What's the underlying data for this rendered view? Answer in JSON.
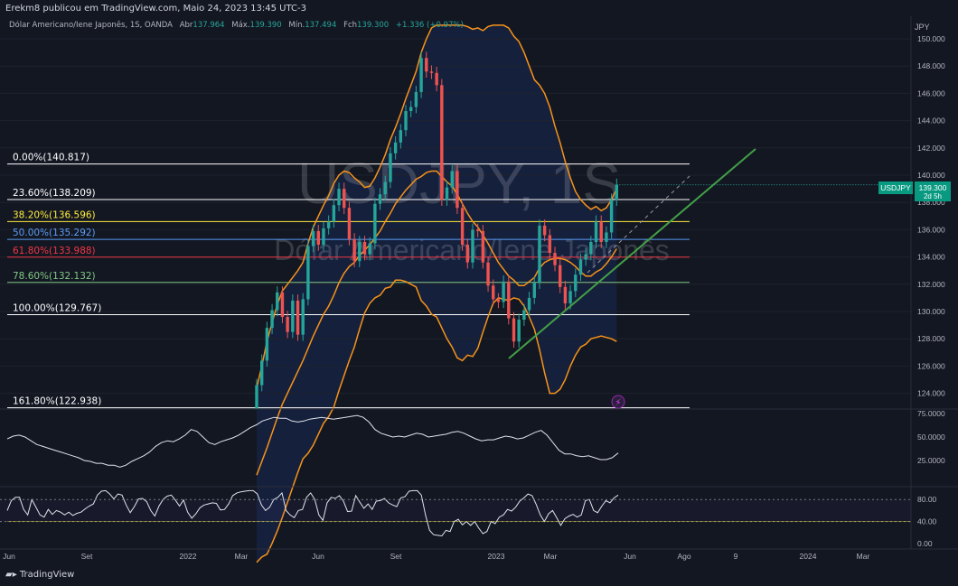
{
  "header": {
    "published": "Erekm8 publicou em TradingView.com, Maio 24, 2023 13:45 UTC-3",
    "symbol_desc": "Dólar Americano/Iene Japonês, 1S, OANDA",
    "open_label": "Abr",
    "open": "137.964",
    "high_label": "Máx.",
    "high": "139.390",
    "low_label": "Mín.",
    "low": "137.494",
    "close_label": "Fch",
    "close": "139.300",
    "change": "+1.336 (+0.97%)"
  },
  "watermark": {
    "line1": "USDJPY, 1S",
    "line2": "Dólar Americano/Iene Japonês"
  },
  "brand": "TradingView",
  "colors": {
    "bg": "#131722",
    "up": "#26a69a",
    "down": "#ef5350",
    "bollinger": "#f7931a",
    "trendline": "#43a047"
  },
  "chart_data": [
    {
      "type": "candlestick",
      "title": "USDJPY, 1S",
      "y_unit": "JPY",
      "ylim": [
        123.0,
        151.0
      ],
      "y_ticks": [
        "150.000",
        "148.000",
        "146.000",
        "144.000",
        "142.000",
        "140.000",
        "138.000",
        "136.000",
        "134.000",
        "132.000",
        "130.000",
        "128.000",
        "126.000",
        "124.000"
      ],
      "x_ticks": [
        "Jun",
        "Set",
        "2022",
        "Mar",
        "Jun",
        "Set",
        "2023",
        "Mar",
        "Jun",
        "Ago",
        "9",
        "2024",
        "Mar"
      ],
      "price_label": {
        "symbol": "USDJPY",
        "value": "139.300",
        "countdown": "2d 5h"
      },
      "fib_levels": [
        {
          "label": "0.00%",
          "value": "140.817",
          "color": "#ffffff"
        },
        {
          "label": "23.60%",
          "value": "138.209",
          "color": "#ffffff"
        },
        {
          "label": "38.20%",
          "value": "136.596",
          "color": "#ffeb3b"
        },
        {
          "label": "50.00%",
          "value": "135.292",
          "color": "#5b9cf6"
        },
        {
          "label": "61.80%",
          "value": "133.988",
          "color": "#f23645"
        },
        {
          "label": "78.60%",
          "value": "132.132",
          "color": "#81c784"
        },
        {
          "label": "100.00%",
          "value": "129.767",
          "color": "#ffffff"
        },
        {
          "label": "161.80%",
          "value": "122.938",
          "color": "#ffffff"
        }
      ],
      "candles": [
        [
          121.5,
          124.6
        ],
        [
          124.6,
          126.4
        ],
        [
          126.4,
          128.8
        ],
        [
          128.8,
          130.1
        ],
        [
          130.1,
          131.4
        ],
        [
          131.4,
          129.6
        ],
        [
          129.6,
          128.5
        ],
        [
          128.5,
          130.8
        ],
        [
          130.8,
          128.3
        ],
        [
          128.3,
          130.9
        ],
        [
          130.9,
          134.8
        ],
        [
          134.8,
          135.9
        ],
        [
          135.9,
          134.9
        ],
        [
          134.9,
          136.1
        ],
        [
          136.1,
          136.6
        ],
        [
          136.6,
          137.8
        ],
        [
          137.8,
          139.0
        ],
        [
          139.0,
          137.6
        ],
        [
          137.6,
          135.3
        ],
        [
          135.3,
          133.7
        ],
        [
          133.7,
          135.1
        ],
        [
          135.1,
          134.2
        ],
        [
          134.2,
          135.0
        ],
        [
          135.0,
          137.9
        ],
        [
          137.9,
          138.6
        ],
        [
          138.6,
          139.5
        ],
        [
          139.5,
          141.6
        ],
        [
          141.6,
          142.4
        ],
        [
          142.4,
          143.3
        ],
        [
          143.3,
          144.7
        ],
        [
          144.7,
          145.0
        ],
        [
          145.0,
          146.1
        ],
        [
          146.1,
          148.6
        ],
        [
          148.6,
          147.6
        ],
        [
          147.6,
          147.5
        ],
        [
          147.5,
          146.6
        ],
        [
          146.6,
          138.2
        ],
        [
          138.2,
          139.1
        ],
        [
          139.1,
          140.3
        ],
        [
          140.3,
          137.6
        ],
        [
          137.6,
          134.9
        ],
        [
          134.9,
          133.6
        ],
        [
          133.6,
          136.0
        ],
        [
          136.0,
          135.9
        ],
        [
          135.9,
          133.6
        ],
        [
          133.6,
          131.9
        ],
        [
          131.9,
          130.9
        ],
        [
          130.9,
          130.7
        ],
        [
          130.7,
          132.2
        ],
        [
          132.2,
          129.5
        ],
        [
          129.5,
          127.8
        ],
        [
          127.8,
          129.4
        ],
        [
          129.4,
          130.1
        ],
        [
          130.1,
          131.0
        ],
        [
          131.0,
          132.1
        ],
        [
          132.1,
          136.3
        ],
        [
          136.3,
          135.6
        ],
        [
          135.6,
          134.3
        ],
        [
          134.3,
          133.4
        ],
        [
          133.4,
          131.8
        ],
        [
          131.8,
          130.6
        ],
        [
          130.6,
          131.5
        ],
        [
          131.5,
          132.7
        ],
        [
          132.7,
          133.8
        ],
        [
          133.8,
          134.2
        ],
        [
          134.2,
          135.1
        ],
        [
          135.1,
          136.6
        ],
        [
          136.6,
          135.1
        ],
        [
          135.1,
          135.8
        ],
        [
          135.8,
          138.2
        ],
        [
          138.2,
          139.3
        ]
      ],
      "bollinger": {
        "upper": [
          124.4,
          126.0,
          127.8,
          129.2,
          130.5,
          131.5,
          132.0,
          132.5,
          133.0,
          133.6,
          135.0,
          136.2,
          137.0,
          137.8,
          138.5,
          139.4,
          140.0,
          140.3,
          140.2,
          139.8,
          139.5,
          139.1,
          139.2,
          139.8,
          140.6,
          141.5,
          142.6,
          143.5,
          144.5,
          145.6,
          146.6,
          147.6,
          149.0,
          150.0,
          150.8,
          151.0,
          151.0,
          151.0,
          151.0,
          151.0,
          151.0,
          150.9,
          150.7,
          150.8,
          150.6,
          150.9,
          151.0,
          151.0,
          151.0,
          150.8,
          150.2,
          149.8,
          149.0,
          148.0,
          147.0,
          146.6,
          146.0,
          145.0,
          143.6,
          142.4,
          141.0,
          139.8,
          138.8,
          138.2,
          137.8,
          137.5,
          137.7,
          137.4,
          137.6,
          138.2,
          139.0
        ],
        "mid": [
          118.0,
          119.0,
          120.0,
          121.1,
          122.2,
          123.2,
          124.0,
          124.8,
          125.6,
          126.4,
          127.3,
          128.2,
          129.0,
          129.8,
          130.4,
          131.2,
          132.1,
          132.8,
          133.3,
          133.6,
          134.1,
          134.5,
          134.9,
          135.4,
          135.9,
          136.6,
          137.2,
          137.9,
          138.4,
          138.9,
          139.3,
          139.7,
          139.9,
          140.2,
          140.3,
          140.3,
          139.9,
          139.5,
          139.2,
          138.6,
          137.9,
          137.2,
          136.6,
          136.2,
          135.6,
          135.0,
          134.3,
          133.6,
          133.1,
          132.6,
          132.3,
          131.9,
          131.9,
          132.2,
          132.5,
          133.2,
          133.6,
          133.8,
          133.9,
          133.9,
          133.8,
          133.6,
          133.3,
          132.9,
          132.6,
          132.6,
          132.9,
          133.1,
          133.5,
          134.0,
          134.6
        ],
        "lower": [
          111.6,
          112.0,
          112.2,
          113.0,
          113.9,
          114.9,
          116.0,
          117.1,
          118.2,
          119.2,
          119.6,
          120.2,
          121.0,
          121.8,
          122.3,
          123.0,
          124.2,
          125.3,
          126.4,
          127.4,
          128.7,
          129.9,
          130.6,
          131.0,
          131.2,
          131.7,
          131.8,
          132.3,
          132.3,
          132.2,
          132.0,
          131.8,
          130.8,
          130.4,
          129.8,
          129.6,
          128.8,
          128.0,
          127.4,
          126.6,
          126.4,
          126.8,
          126.7,
          127.3,
          128.5,
          129.6,
          130.6,
          131.0,
          130.9,
          130.8,
          131.0,
          130.9,
          130.4,
          129.6,
          128.7,
          127.2,
          125.5,
          124.0,
          124.0,
          124.3,
          125.0,
          126.0,
          126.8,
          127.4,
          127.6,
          128.0,
          128.1,
          128.2,
          128.1,
          128.0,
          127.8
        ]
      }
    },
    {
      "type": "line",
      "title": "",
      "ylim": [
        0,
        75
      ],
      "y_ticks": [
        "75.0000",
        "50.0000",
        "25.0000"
      ],
      "values": [
        48,
        51,
        52,
        50,
        46,
        42,
        40,
        38,
        36,
        34,
        32,
        30,
        28,
        25,
        24,
        22,
        22,
        20,
        20,
        18,
        20,
        24,
        27,
        30,
        34,
        40,
        44,
        46,
        45,
        48,
        52,
        58,
        56,
        50,
        44,
        42,
        45,
        47,
        49,
        52,
        56,
        60,
        63,
        67,
        69,
        71,
        70,
        70,
        67,
        66,
        67,
        69,
        70,
        71,
        70,
        69,
        70,
        71,
        72,
        73,
        71,
        66,
        58,
        54,
        52,
        50,
        51,
        50,
        52,
        54,
        53,
        50,
        51,
        52,
        53,
        55,
        56,
        54,
        51,
        48,
        46,
        47,
        47,
        49,
        51,
        50,
        48,
        49,
        52,
        55,
        57,
        52,
        44,
        36,
        32,
        32,
        30,
        29,
        30,
        28,
        26,
        26,
        28,
        33
      ]
    },
    {
      "type": "line",
      "title": "",
      "ylim": [
        0,
        100
      ],
      "y_ticks": [
        "80.00",
        "40.00",
        "0.00"
      ],
      "values": [
        60,
        78,
        84,
        84,
        62,
        52,
        80,
        66,
        52,
        48,
        62,
        53,
        60,
        57,
        52,
        57,
        51,
        55,
        57,
        63,
        68,
        72,
        88,
        95,
        96,
        90,
        81,
        90,
        88,
        70,
        56,
        67,
        81,
        82,
        76,
        60,
        50,
        68,
        80,
        86,
        88,
        79,
        68,
        79,
        57,
        46,
        54,
        65,
        70,
        72,
        74,
        73,
        61,
        62,
        72,
        87,
        92,
        94,
        95,
        96,
        96,
        90,
        70,
        60,
        66,
        80,
        84,
        92,
        60,
        52,
        47,
        60,
        62,
        84,
        92,
        80,
        52,
        42,
        74,
        84,
        82,
        87,
        77,
        58,
        59,
        87,
        75,
        64,
        72,
        62,
        77,
        78,
        82,
        74,
        70,
        67,
        83,
        85,
        95,
        96,
        96,
        88,
        52,
        24,
        16,
        15,
        14,
        24,
        22,
        40,
        44,
        34,
        40,
        33,
        40,
        28,
        18,
        22,
        40,
        36,
        48,
        52,
        62,
        59,
        66,
        77,
        83,
        90,
        87,
        71,
        52,
        40,
        54,
        60,
        47,
        33,
        45,
        50,
        53,
        48,
        52,
        78,
        80,
        60,
        56,
        68,
        78,
        74,
        83,
        88
      ]
    }
  ]
}
